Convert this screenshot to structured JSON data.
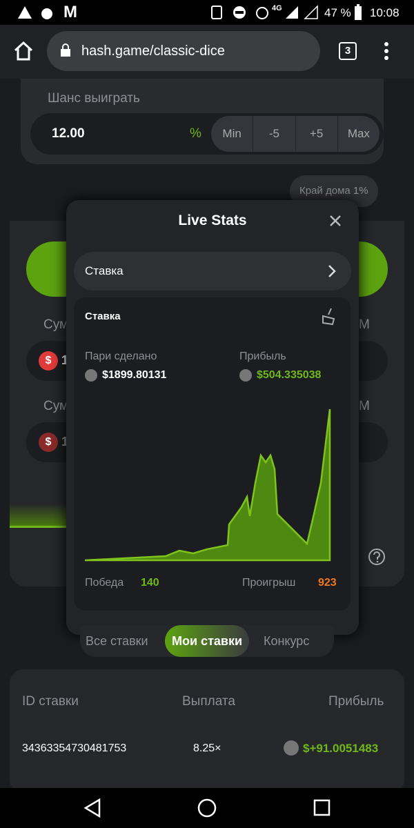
{
  "status_bar": {
    "carrier": "M",
    "network": "4G",
    "battery": "47 %",
    "time": "10:08"
  },
  "browser": {
    "url": "hash.game/classic-dice",
    "tabs": "3"
  },
  "game": {
    "chance_label": "Шанс выиграть",
    "chance_value": "12.00",
    "chance_unit": "%",
    "buttons": [
      "Min",
      "-5",
      "+5",
      "Max"
    ],
    "house_edge": "Край дома 1%",
    "amount_label_1": "Сум",
    "amount_value_1": "1",
    "amount_suffix_1": "M",
    "amount_label_2": "Сум",
    "amount_value_2": "1",
    "amount_suffix_2": "M"
  },
  "modal": {
    "title": "Live Stats",
    "selector": "Ставка",
    "card_title": "Ставка",
    "bets_label": "Пари сделано",
    "bets_value": "$1899.80131",
    "profit_label": "Прибыль",
    "profit_value": "$504.335038",
    "wins_label": "Победа",
    "wins_value": "140",
    "losses_label": "Проигрыш",
    "losses_value": "923"
  },
  "tabs": [
    "Все ставки",
    "Мои ставки",
    "Конкурс"
  ],
  "table": {
    "headers": [
      "ID ставки",
      "Выплата",
      "Прибыль"
    ],
    "rows": [
      [
        "34363354730481753",
        "8.25×",
        "$+91.0051483"
      ]
    ]
  }
}
